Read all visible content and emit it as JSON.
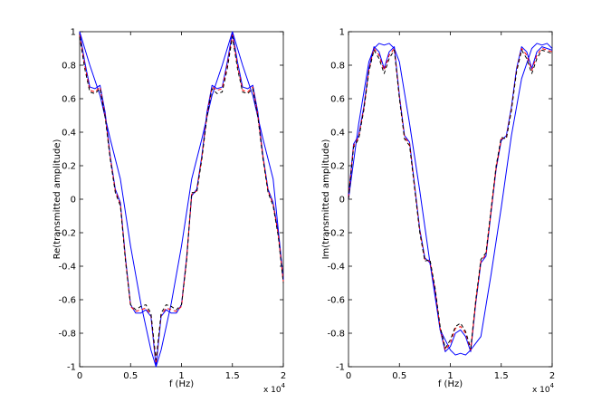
{
  "chart_data": [
    {
      "type": "line",
      "xlabel": "f (Hz)",
      "ylabel": "Re(transmitted amplitude)",
      "xlim": [
        0,
        20000
      ],
      "ylim": [
        -1,
        1
      ],
      "x_ticks": [
        "0",
        "0.5",
        "1",
        "1.5",
        "2"
      ],
      "x_exponent_label": "x 10",
      "x_exponent_power": "4",
      "y_ticks": [
        "-1",
        "-0.8",
        "-0.6",
        "-0.4",
        "-0.2",
        "0",
        "0.2",
        "0.4",
        "0.6",
        "0.8",
        "1"
      ],
      "grid": false,
      "series": [
        {
          "style": "solid",
          "color": "#0000ff",
          "x": [
            0,
            1000,
            2000,
            3000,
            4000,
            5000,
            6000,
            7000,
            7500,
            8000,
            9000,
            10000,
            11000,
            12000,
            13000,
            14000,
            15000,
            16000,
            17000,
            18000,
            19000,
            20000
          ],
          "y": [
            1.0,
            0.8,
            0.62,
            0.36,
            0.12,
            -0.28,
            -0.62,
            -0.9,
            -1.0,
            -0.9,
            -0.62,
            -0.28,
            0.12,
            0.36,
            0.62,
            0.8,
            1.0,
            0.8,
            0.62,
            0.36,
            0.12,
            -0.48
          ]
        },
        {
          "style": "solid",
          "color": "#0000ff",
          "x": [
            0,
            500,
            1000,
            1500,
            2000,
            2500,
            3000,
            3500,
            4000,
            4500,
            5000,
            5500,
            6000,
            6500,
            7000,
            7500,
            8000,
            8500,
            9000,
            9500,
            10000,
            10500,
            11000,
            11500,
            12000,
            12500,
            13000,
            13500,
            14000,
            14500,
            15000,
            15500,
            16000,
            16500,
            17000,
            17500,
            18000,
            18500,
            19000,
            19500,
            20000
          ],
          "y": [
            1.0,
            0.82,
            0.67,
            0.66,
            0.68,
            0.52,
            0.26,
            0.06,
            -0.02,
            -0.35,
            -0.63,
            -0.68,
            -0.68,
            -0.66,
            -0.7,
            -1.0,
            -0.7,
            -0.66,
            -0.68,
            -0.68,
            -0.63,
            -0.35,
            0.02,
            0.06,
            0.26,
            0.52,
            0.68,
            0.66,
            0.67,
            0.82,
            1.0,
            0.82,
            0.67,
            0.66,
            0.68,
            0.52,
            0.26,
            0.06,
            -0.02,
            -0.2,
            -0.48
          ]
        },
        {
          "style": "dashed",
          "color": "#ff0000",
          "x": [
            0,
            500,
            1000,
            1500,
            2000,
            2500,
            3000,
            3500,
            4000,
            4500,
            5000,
            5500,
            6000,
            6500,
            7000,
            7500,
            8000,
            8500,
            9000,
            9500,
            10000,
            10500,
            11000,
            11500,
            12000,
            12500,
            13000,
            13500,
            14000,
            14500,
            15000,
            15500,
            16000,
            16500,
            17000,
            17500,
            18000,
            18500,
            19000,
            19500,
            20000
          ],
          "y": [
            0.98,
            0.8,
            0.65,
            0.64,
            0.67,
            0.5,
            0.25,
            0.05,
            -0.03,
            -0.36,
            -0.64,
            -0.67,
            -0.66,
            -0.65,
            -0.69,
            -0.98,
            -0.69,
            -0.65,
            -0.66,
            -0.67,
            -0.64,
            -0.36,
            0.03,
            0.05,
            0.25,
            0.5,
            0.67,
            0.65,
            0.66,
            0.8,
            0.98,
            0.8,
            0.65,
            0.64,
            0.67,
            0.5,
            0.25,
            0.05,
            -0.03,
            -0.21,
            -0.49
          ]
        },
        {
          "style": "dashed",
          "color": "#000000",
          "x": [
            0,
            500,
            1000,
            1500,
            2000,
            2500,
            3000,
            3500,
            4000,
            4500,
            5000,
            5500,
            6000,
            6500,
            7000,
            7500,
            8000,
            8500,
            9000,
            9500,
            10000,
            10500,
            11000,
            11500,
            12000,
            12500,
            13000,
            13500,
            14000,
            14500,
            15000,
            15500,
            16000,
            16500,
            17000,
            17500,
            18000,
            18500,
            19000,
            19500,
            20000
          ],
          "y": [
            0.97,
            0.78,
            0.64,
            0.63,
            0.66,
            0.49,
            0.24,
            0.04,
            -0.04,
            -0.37,
            -0.63,
            -0.66,
            -0.64,
            -0.63,
            -0.68,
            -0.96,
            -0.68,
            -0.63,
            -0.64,
            -0.66,
            -0.63,
            -0.37,
            0.04,
            0.04,
            0.24,
            0.49,
            0.66,
            0.63,
            0.64,
            0.78,
            0.97,
            0.78,
            0.64,
            0.63,
            0.66,
            0.49,
            0.24,
            0.04,
            -0.04,
            -0.22,
            -0.5
          ]
        }
      ]
    },
    {
      "type": "line",
      "xlabel": "f (Hz)",
      "ylabel": "Im(transmitted amplitude)",
      "xlim": [
        0,
        20000
      ],
      "ylim": [
        -1,
        1
      ],
      "x_ticks": [
        "0",
        "0.5",
        "1",
        "1.5",
        "2"
      ],
      "x_exponent_label": "x 10",
      "x_exponent_power": "4",
      "y_ticks": [
        "-1",
        "-0.8",
        "-0.6",
        "-0.4",
        "-0.2",
        "0",
        "0.2",
        "0.4",
        "0.6",
        "0.8",
        "1"
      ],
      "grid": false,
      "series": [
        {
          "style": "solid",
          "color": "#0000ff",
          "x": [
            0,
            1000,
            2000,
            2500,
            3000,
            3500,
            4000,
            4500,
            5000,
            6000,
            7000,
            8000,
            9000,
            10000,
            10500,
            11000,
            11500,
            12000,
            13000,
            14000,
            15000,
            16000,
            17000,
            18000,
            18500,
            19000,
            19500,
            20000
          ],
          "y": [
            0.0,
            0.45,
            0.82,
            0.9,
            0.93,
            0.92,
            0.93,
            0.9,
            0.82,
            0.45,
            0.05,
            -0.38,
            -0.78,
            -0.9,
            -0.93,
            -0.92,
            -0.93,
            -0.9,
            -0.82,
            -0.45,
            -0.05,
            0.38,
            0.72,
            0.9,
            0.93,
            0.92,
            0.93,
            0.9
          ]
        },
        {
          "style": "solid",
          "color": "#0000ff",
          "x": [
            0,
            500,
            1000,
            1500,
            2000,
            2500,
            3000,
            3500,
            4000,
            4500,
            5000,
            5500,
            6000,
            6500,
            7000,
            7500,
            8000,
            8500,
            9000,
            9500,
            10000,
            10500,
            11000,
            11500,
            12000,
            12500,
            13000,
            13500,
            14000,
            14500,
            15000,
            15500,
            16000,
            16500,
            17000,
            17500,
            18000,
            18500,
            19000,
            19500,
            20000
          ],
          "y": [
            0.02,
            0.33,
            0.38,
            0.55,
            0.78,
            0.91,
            0.88,
            0.78,
            0.88,
            0.91,
            0.62,
            0.38,
            0.34,
            0.08,
            -0.18,
            -0.35,
            -0.38,
            -0.55,
            -0.78,
            -0.91,
            -0.88,
            -0.8,
            -0.78,
            -0.82,
            -0.91,
            -0.62,
            -0.38,
            -0.34,
            -0.08,
            0.18,
            0.35,
            0.38,
            0.55,
            0.78,
            0.91,
            0.88,
            0.78,
            0.88,
            0.91,
            0.9,
            0.89
          ]
        },
        {
          "style": "dashed",
          "color": "#ff0000",
          "x": [
            0,
            500,
            1000,
            1500,
            2000,
            2500,
            3000,
            3500,
            4000,
            4500,
            5000,
            5500,
            6000,
            6500,
            7000,
            7500,
            8000,
            8500,
            9000,
            9500,
            10000,
            10500,
            11000,
            11500,
            12000,
            12500,
            13000,
            13500,
            14000,
            14500,
            15000,
            15500,
            16000,
            16500,
            17000,
            17500,
            18000,
            18500,
            19000,
            19500,
            20000
          ],
          "y": [
            0.01,
            0.32,
            0.37,
            0.54,
            0.77,
            0.9,
            0.86,
            0.77,
            0.86,
            0.9,
            0.61,
            0.37,
            0.33,
            0.07,
            -0.19,
            -0.36,
            -0.37,
            -0.54,
            -0.77,
            -0.9,
            -0.86,
            -0.77,
            -0.76,
            -0.8,
            -0.9,
            -0.61,
            -0.37,
            -0.33,
            -0.07,
            0.19,
            0.36,
            0.37,
            0.54,
            0.77,
            0.9,
            0.86,
            0.77,
            0.86,
            0.9,
            0.89,
            0.88
          ]
        },
        {
          "style": "dashed",
          "color": "#000000",
          "x": [
            0,
            500,
            1000,
            1500,
            2000,
            2500,
            3000,
            3500,
            4000,
            4500,
            5000,
            5500,
            6000,
            6500,
            7000,
            7500,
            8000,
            8500,
            9000,
            9500,
            10000,
            10500,
            11000,
            11500,
            12000,
            12500,
            13000,
            13500,
            14000,
            14500,
            15000,
            15500,
            16000,
            16500,
            17000,
            17500,
            18000,
            18500,
            19000,
            19500,
            20000
          ],
          "y": [
            0.0,
            0.31,
            0.36,
            0.53,
            0.76,
            0.89,
            0.84,
            0.75,
            0.84,
            0.89,
            0.6,
            0.36,
            0.32,
            0.06,
            -0.2,
            -0.37,
            -0.36,
            -0.53,
            -0.76,
            -0.89,
            -0.84,
            -0.76,
            -0.74,
            -0.79,
            -0.89,
            -0.6,
            -0.36,
            -0.32,
            -0.06,
            0.2,
            0.37,
            0.36,
            0.53,
            0.76,
            0.89,
            0.84,
            0.75,
            0.84,
            0.89,
            0.88,
            0.87
          ]
        }
      ]
    }
  ]
}
